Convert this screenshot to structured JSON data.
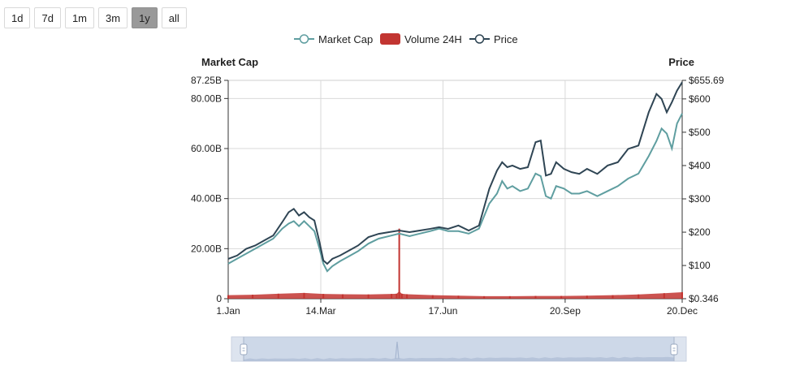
{
  "range_buttons": [
    {
      "label": "1d",
      "active": false
    },
    {
      "label": "7d",
      "active": false
    },
    {
      "label": "1m",
      "active": false
    },
    {
      "label": "3m",
      "active": false
    },
    {
      "label": "1y",
      "active": true
    },
    {
      "label": "all",
      "active": false
    }
  ],
  "chart_data": {
    "type": "line",
    "grid": true,
    "legend_position": "top-center",
    "legend": [
      {
        "label": "Market Cap",
        "symbol": "line-circle",
        "color": "#5f9ea0"
      },
      {
        "label": "Volume 24H",
        "symbol": "rect",
        "color": "#c23531"
      },
      {
        "label": "Price",
        "symbol": "line-circle",
        "color": "#2f4554"
      }
    ],
    "left_axis": {
      "title": "Market Cap",
      "min": 0,
      "max": 87.25,
      "ticks": [
        0,
        20,
        40,
        60,
        80,
        87.25
      ],
      "tick_labels": [
        "0",
        "20.00B",
        "40.00B",
        "60.00B",
        "80.00B",
        "87.25B"
      ]
    },
    "right_axis": {
      "title": "Price",
      "min": 0.346,
      "max": 655.69,
      "ticks": [
        0.346,
        100,
        200,
        300,
        400,
        500,
        600,
        655.69
      ],
      "tick_labels": [
        "$0.346",
        "$100",
        "$200",
        "$300",
        "$400",
        "$500",
        "$600",
        "$655.69"
      ]
    },
    "x_axis": {
      "min_day": 1,
      "max_day": 354,
      "ticks": [
        1,
        73,
        168,
        263,
        354
      ],
      "tick_labels": [
        "1.Jan",
        "14.Mar",
        "17.Jun",
        "20.Sep",
        "20.Dec"
      ]
    },
    "series": [
      {
        "name": "Market Cap",
        "color": "#5f9ea0",
        "x": [
          1,
          8,
          15,
          22,
          29,
          36,
          43,
          48,
          52,
          56,
          60,
          64,
          68,
          72,
          75,
          78,
          82,
          88,
          95,
          102,
          110,
          118,
          126,
          134,
          142,
          150,
          158,
          165,
          172,
          180,
          188,
          196,
          204,
          210,
          214,
          218,
          222,
          228,
          234,
          240,
          244,
          248,
          252,
          256,
          262,
          268,
          274,
          280,
          288,
          296,
          304,
          312,
          320,
          328,
          334,
          338,
          342,
          346,
          350,
          354
        ],
        "y": [
          14,
          16,
          18,
          20,
          22,
          24,
          28,
          30,
          31,
          29,
          31,
          29,
          27,
          20,
          14,
          11,
          13,
          15,
          17,
          19,
          22,
          24,
          25,
          26,
          25,
          26,
          27,
          28,
          27,
          27,
          26,
          28,
          38,
          42,
          47,
          44,
          45,
          43,
          44,
          50,
          49,
          41,
          40,
          45,
          44,
          42,
          42,
          43,
          41,
          43,
          45,
          48,
          50,
          57,
          63,
          68,
          66,
          60,
          70,
          74
        ]
      },
      {
        "name": "Volume 24H",
        "color": "#c23531",
        "x": [
          1,
          20,
          40,
          60,
          75,
          90,
          110,
          128,
          132,
          134,
          136,
          140,
          160,
          180,
          200,
          220,
          240,
          260,
          280,
          300,
          320,
          340,
          354
        ],
        "y": [
          1.4,
          1.6,
          2.0,
          2.3,
          1.9,
          1.8,
          1.7,
          1.9,
          2.0,
          28,
          2.0,
          1.8,
          1.4,
          1.2,
          1.0,
          1.0,
          1.1,
          1.1,
          1.2,
          1.4,
          1.7,
          2.2,
          2.6
        ]
      },
      {
        "name": "Price",
        "color": "#2f4554",
        "x": [
          1,
          8,
          15,
          22,
          29,
          36,
          43,
          48,
          52,
          56,
          60,
          64,
          68,
          72,
          75,
          78,
          82,
          88,
          95,
          102,
          110,
          118,
          126,
          134,
          142,
          150,
          158,
          165,
          172,
          180,
          188,
          196,
          204,
          210,
          214,
          218,
          222,
          228,
          234,
          240,
          244,
          248,
          252,
          256,
          262,
          268,
          274,
          280,
          288,
          296,
          304,
          312,
          320,
          328,
          334,
          338,
          342,
          346,
          350,
          354
        ],
        "y": [
          120,
          130,
          150,
          160,
          175,
          190,
          230,
          260,
          270,
          250,
          260,
          245,
          235,
          170,
          115,
          105,
          120,
          130,
          145,
          160,
          185,
          195,
          200,
          205,
          200,
          205,
          210,
          215,
          210,
          220,
          205,
          220,
          330,
          385,
          410,
          395,
          400,
          390,
          395,
          470,
          475,
          370,
          375,
          410,
          390,
          380,
          375,
          390,
          375,
          400,
          410,
          450,
          460,
          560,
          615,
          600,
          560,
          590,
          625,
          650
        ]
      }
    ]
  }
}
